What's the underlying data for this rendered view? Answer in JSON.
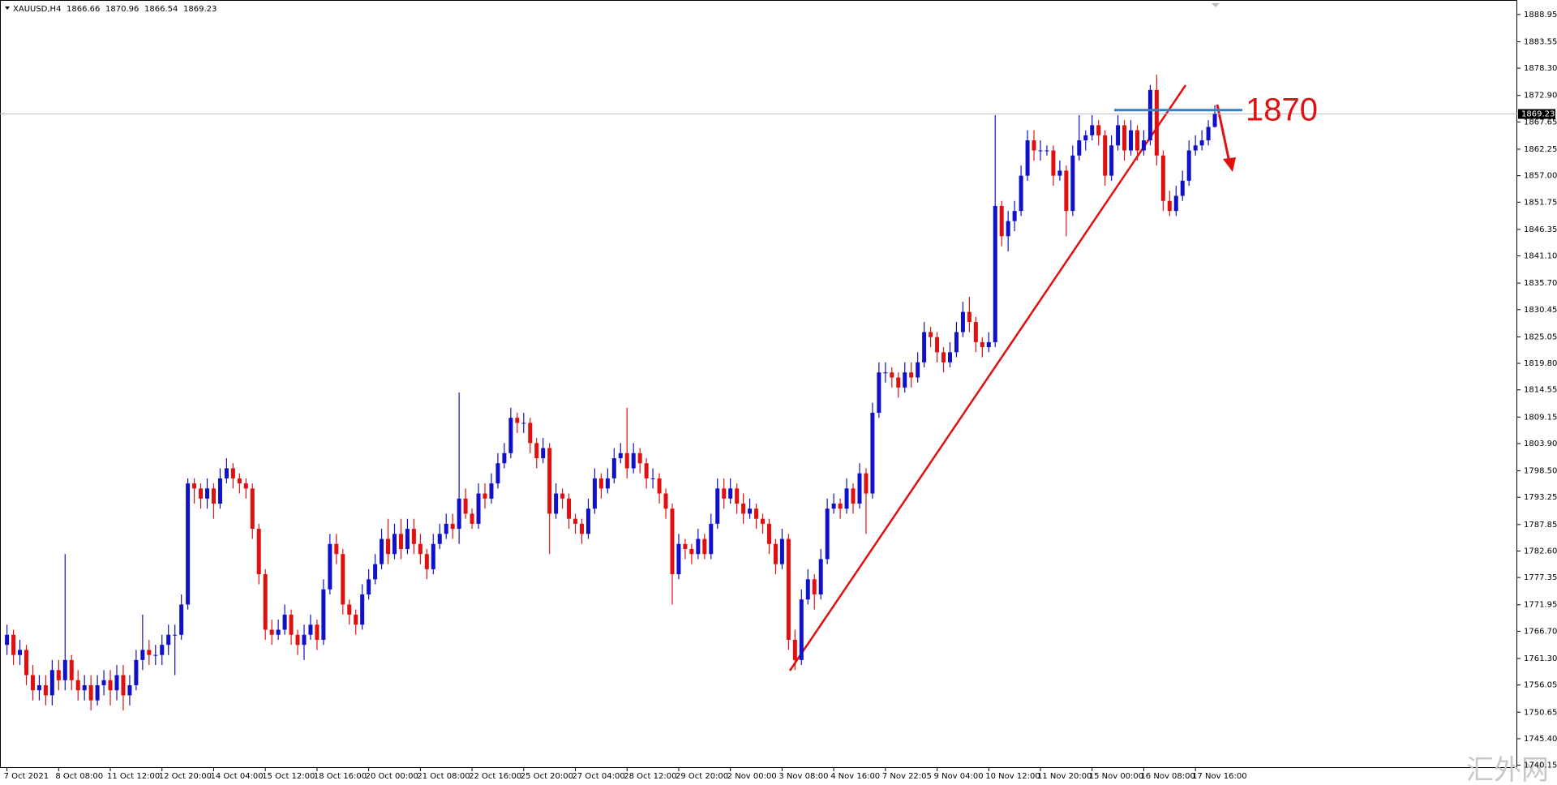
{
  "chart_data": {
    "type": "candlestick",
    "symbol": "XAUUSD,H4",
    "level_annotation": 1870,
    "watermark": "汇外网",
    "up_color": "#1010c8",
    "down_color": "#e01010",
    "level_color": "#3a7fc0",
    "trend_color": "#e01010",
    "grid": false,
    "ylim": [
      1739.6,
      1891.5
    ],
    "yticks": [
      1888.95,
      1883.55,
      {
        "value": 1878.3,
        "label": "1878.30"
      },
      {
        "value": 1872.9,
        "label": "1872.90"
      },
      1867.65,
      1862.25,
      {
        "value": 1857,
        "label": "1857.00"
      },
      1851.75,
      1846.35,
      {
        "value": 1841.1,
        "label": "1841.10"
      },
      {
        "value": 1835.7,
        "label": "1835.70"
      },
      1830.45,
      1825.05,
      {
        "value": 1819.8,
        "label": "1819.80"
      },
      1814.55,
      1809.15,
      {
        "value": 1803.9,
        "label": "1803.90"
      },
      {
        "value": 1798.5,
        "label": "1798.50"
      },
      1793.25,
      1787.85,
      {
        "value": 1782.6,
        "label": "1782.60"
      },
      1777.35,
      1771.95,
      {
        "value": 1766.7,
        "label": "1766.70"
      },
      {
        "value": 1761.3,
        "label": "1761.30"
      },
      1756.05,
      1750.65,
      {
        "value": 1745.4,
        "label": "1745.40"
      },
      1740.15
    ],
    "categories": [
      "7 Oct 2021",
      null,
      null,
      null,
      null,
      null,
      null,
      null,
      "8 Oct 08:00",
      null,
      null,
      null,
      null,
      null,
      null,
      null,
      "11 Oct 12:00",
      null,
      null,
      null,
      null,
      null,
      null,
      null,
      "12 Oct 20:00",
      null,
      null,
      null,
      null,
      null,
      null,
      null,
      "14 Oct 04:00",
      null,
      null,
      null,
      null,
      null,
      null,
      null,
      "15 Oct 12:00",
      null,
      null,
      null,
      null,
      null,
      null,
      null,
      "18 Oct 16:00",
      null,
      null,
      null,
      null,
      null,
      null,
      null,
      "20 Oct 00:00",
      null,
      null,
      null,
      null,
      null,
      null,
      null,
      "21 Oct 08:00",
      null,
      null,
      null,
      null,
      null,
      null,
      null,
      "22 Oct 16:00",
      null,
      null,
      null,
      null,
      null,
      null,
      null,
      "25 Oct 20:00",
      null,
      null,
      null,
      null,
      null,
      null,
      null,
      "27 Oct 04:00",
      null,
      null,
      null,
      null,
      null,
      null,
      null,
      "28 Oct 12:00",
      null,
      null,
      null,
      null,
      null,
      null,
      null,
      "29 Oct 20:00",
      null,
      null,
      null,
      null,
      null,
      null,
      null,
      "2 Nov 00:00",
      null,
      null,
      null,
      null,
      null,
      null,
      null,
      "3 Nov 08:00",
      null,
      null,
      null,
      null,
      null,
      null,
      null,
      "4 Nov 16:00",
      null,
      null,
      null,
      null,
      null,
      null,
      null,
      "7 Nov 22:05",
      null,
      null,
      null,
      null,
      null,
      null,
      null,
      "9 Nov 04:00",
      null,
      null,
      null,
      null,
      null,
      null,
      null,
      "10 Nov 12:00",
      null,
      null,
      null,
      null,
      null,
      null,
      null,
      "11 Nov 20:00",
      null,
      null,
      null,
      null,
      null,
      null,
      null,
      "15 Nov 00:00",
      null,
      null,
      null,
      null,
      null,
      null,
      null,
      "16 Nov 08:00",
      null,
      null,
      null,
      null,
      null,
      null,
      null,
      "17 Nov 16:00",
      null,
      null,
      null
    ],
    "candles": [
      [
        1764,
        1768,
        1762,
        1766
      ],
      [
        1766,
        1767,
        1760,
        1762
      ],
      [
        1762,
        1765,
        1760,
        1763
      ],
      [
        1763,
        1764,
        1756,
        1758
      ],
      [
        1758,
        1760,
        1753,
        1755
      ],
      [
        1755,
        1758,
        1753,
        1756
      ],
      [
        1756,
        1758,
        1752,
        1754
      ],
      [
        1754,
        1761,
        1752,
        1759
      ],
      [
        1759,
        1761,
        1755,
        1757
      ],
      [
        1757,
        1782,
        1755,
        1761
      ],
      [
        1761,
        1762,
        1755,
        1757
      ],
      [
        1757,
        1759,
        1753,
        1755
      ],
      [
        1755,
        1758,
        1753,
        1756
      ],
      [
        1756,
        1758,
        1751,
        1753
      ],
      [
        1753,
        1758,
        1752,
        1756
      ],
      [
        1756,
        1759,
        1754,
        1757
      ],
      [
        1757,
        1759,
        1752,
        1755
      ],
      [
        1755,
        1760,
        1753,
        1758
      ],
      [
        1758,
        1760,
        1751,
        1754
      ],
      [
        1754,
        1758,
        1752,
        1756
      ],
      [
        1756,
        1763,
        1755,
        1761
      ],
      [
        1761,
        1770,
        1759,
        1763
      ],
      [
        1763,
        1765,
        1760,
        1762
      ],
      [
        1762,
        1764,
        1760,
        1762
      ],
      [
        1762,
        1766,
        1760,
        1764
      ],
      [
        1764,
        1768,
        1762,
        1766
      ],
      [
        1766,
        1768,
        1758,
        1766
      ],
      [
        1766,
        1774,
        1765,
        1772
      ],
      [
        1772,
        1797,
        1771,
        1796
      ],
      [
        1796,
        1797,
        1792,
        1795
      ],
      [
        1795,
        1796,
        1791,
        1793
      ],
      [
        1793,
        1797,
        1791,
        1795
      ],
      [
        1795,
        1796,
        1789,
        1792
      ],
      [
        1792,
        1799,
        1791,
        1797
      ],
      [
        1797,
        1801,
        1796,
        1799
      ],
      [
        1799,
        1800,
        1795,
        1797
      ],
      [
        1797,
        1798,
        1794,
        1796
      ],
      [
        1796,
        1797,
        1793,
        1795
      ],
      [
        1795,
        1796,
        1785,
        1787
      ],
      [
        1787,
        1788,
        1776,
        1778
      ],
      [
        1778,
        1779,
        1765,
        1767
      ],
      [
        1767,
        1769,
        1764,
        1766
      ],
      [
        1766,
        1769,
        1765,
        1767
      ],
      [
        1767,
        1772,
        1766,
        1770
      ],
      [
        1770,
        1771,
        1764,
        1766
      ],
      [
        1766,
        1767,
        1762,
        1764
      ],
      [
        1764,
        1768,
        1761,
        1766
      ],
      [
        1766,
        1770,
        1765,
        1768
      ],
      [
        1768,
        1769,
        1763,
        1765
      ],
      [
        1765,
        1777,
        1764,
        1775
      ],
      [
        1775,
        1786,
        1774,
        1784
      ],
      [
        1784,
        1786,
        1780,
        1782
      ],
      [
        1782,
        1783,
        1770,
        1772
      ],
      [
        1772,
        1773,
        1768,
        1770
      ],
      [
        1770,
        1771,
        1766,
        1768
      ],
      [
        1768,
        1776,
        1767,
        1774
      ],
      [
        1774,
        1779,
        1773,
        1777
      ],
      [
        1777,
        1782,
        1776,
        1780
      ],
      [
        1780,
        1787,
        1779,
        1785
      ],
      [
        1785,
        1789,
        1780,
        1782
      ],
      [
        1782,
        1788,
        1781,
        1786
      ],
      [
        1786,
        1789,
        1781,
        1783
      ],
      [
        1783,
        1789,
        1782,
        1787
      ],
      [
        1787,
        1789,
        1782,
        1784
      ],
      [
        1784,
        1786,
        1780,
        1782
      ],
      [
        1782,
        1783,
        1777,
        1779
      ],
      [
        1779,
        1786,
        1778,
        1784
      ],
      [
        1784,
        1788,
        1783,
        1786
      ],
      [
        1786,
        1790,
        1785,
        1788
      ],
      [
        1788,
        1790,
        1785,
        1787
      ],
      [
        1787,
        1814,
        1784,
        1793
      ],
      [
        1793,
        1795,
        1789,
        1790
      ],
      [
        1790,
        1791,
        1787,
        1788
      ],
      [
        1788,
        1796,
        1787,
        1794
      ],
      [
        1794,
        1796,
        1791,
        1793
      ],
      [
        1793,
        1798,
        1792,
        1796
      ],
      [
        1796,
        1802,
        1795,
        1800
      ],
      [
        1800,
        1804,
        1799,
        1802
      ],
      [
        1802,
        1811,
        1801,
        1809
      ],
      [
        1809,
        1810,
        1806,
        1808
      ],
      [
        1808,
        1810,
        1806,
        1808
      ],
      [
        1808,
        1809,
        1802,
        1804
      ],
      [
        1804,
        1805,
        1799,
        1801
      ],
      [
        1801,
        1805,
        1800,
        1803
      ],
      [
        1803,
        1804,
        1782,
        1790
      ],
      [
        1790,
        1796,
        1789,
        1794
      ],
      [
        1794,
        1795,
        1791,
        1793
      ],
      [
        1793,
        1794,
        1787,
        1789
      ],
      [
        1789,
        1790,
        1786,
        1788
      ],
      [
        1788,
        1789,
        1784,
        1786
      ],
      [
        1786,
        1793,
        1785,
        1791
      ],
      [
        1791,
        1799,
        1790,
        1797
      ],
      [
        1797,
        1798,
        1793,
        1795
      ],
      [
        1795,
        1799,
        1794,
        1797
      ],
      [
        1797,
        1803,
        1796,
        1801
      ],
      [
        1801,
        1804,
        1800,
        1802
      ],
      [
        1802,
        1811,
        1797,
        1799
      ],
      [
        1799,
        1804,
        1798,
        1802
      ],
      [
        1802,
        1803,
        1798,
        1800
      ],
      [
        1800,
        1801,
        1795,
        1797
      ],
      [
        1797,
        1799,
        1795,
        1797
      ],
      [
        1797,
        1798,
        1792,
        1794
      ],
      [
        1794,
        1795,
        1789,
        1791
      ],
      [
        1791,
        1792,
        1772,
        1778
      ],
      [
        1778,
        1786,
        1777,
        1784
      ],
      [
        1784,
        1785,
        1781,
        1783
      ],
      [
        1783,
        1784,
        1780,
        1782
      ],
      [
        1782,
        1787,
        1781,
        1785
      ],
      [
        1785,
        1786,
        1781,
        1782
      ],
      [
        1782,
        1790,
        1781,
        1788
      ],
      [
        1788,
        1797,
        1787,
        1795
      ],
      [
        1795,
        1797,
        1791,
        1793
      ],
      [
        1793,
        1797,
        1792,
        1795
      ],
      [
        1795,
        1796,
        1790,
        1792
      ],
      [
        1792,
        1794,
        1788,
        1790
      ],
      [
        1790,
        1793,
        1789,
        1791
      ],
      [
        1791,
        1792,
        1787,
        1789
      ],
      [
        1789,
        1790,
        1786,
        1788
      ],
      [
        1788,
        1789,
        1782,
        1784
      ],
      [
        1784,
        1785,
        1778,
        1780
      ],
      [
        1780,
        1787,
        1779,
        1785
      ],
      [
        1785,
        1786,
        1763,
        1765
      ],
      [
        1765,
        1767,
        1759,
        1761
      ],
      [
        1761,
        1775,
        1760,
        1773
      ],
      [
        1773,
        1779,
        1772,
        1777
      ],
      [
        1777,
        1778,
        1771,
        1774
      ],
      [
        1774,
        1783,
        1773,
        1781
      ],
      [
        1781,
        1793,
        1780,
        1791
      ],
      [
        1791,
        1794,
        1790,
        1792
      ],
      [
        1792,
        1793,
        1789,
        1791
      ],
      [
        1791,
        1797,
        1790,
        1795
      ],
      [
        1795,
        1796,
        1790,
        1792
      ],
      [
        1792,
        1800,
        1791,
        1798
      ],
      [
        1798,
        1799,
        1786,
        1794
      ],
      [
        1794,
        1812,
        1793,
        1810
      ],
      [
        1810,
        1820,
        1809,
        1818
      ],
      [
        1818,
        1820,
        1816,
        1818
      ],
      [
        1818,
        1819,
        1815,
        1817
      ],
      [
        1817,
        1818,
        1813,
        1815
      ],
      [
        1815,
        1820,
        1814,
        1818
      ],
      [
        1818,
        1820,
        1815,
        1817
      ],
      [
        1817,
        1822,
        1816,
        1820
      ],
      [
        1820,
        1828,
        1819,
        1826
      ],
      [
        1826,
        1827,
        1823,
        1825
      ],
      [
        1825,
        1826,
        1820,
        1822
      ],
      [
        1822,
        1823,
        1818,
        1820
      ],
      [
        1820,
        1824,
        1819,
        1822
      ],
      [
        1822,
        1828,
        1821,
        1826
      ],
      [
        1826,
        1832,
        1825,
        1830
      ],
      [
        1830,
        1833,
        1826,
        1828
      ],
      [
        1828,
        1829,
        1822,
        1824
      ],
      [
        1824,
        1825,
        1821,
        1823
      ],
      [
        1823,
        1826,
        1822,
        1824
      ],
      [
        1824,
        1869,
        1823,
        1851
      ],
      [
        1851,
        1852,
        1843,
        1845
      ],
      [
        1845,
        1850,
        1842,
        1848
      ],
      [
        1848,
        1852,
        1846,
        1850
      ],
      [
        1850,
        1859,
        1849,
        1857
      ],
      [
        1857,
        1866,
        1856,
        1864
      ],
      [
        1864,
        1866,
        1860,
        1862
      ],
      [
        1862,
        1864,
        1860,
        1862
      ],
      [
        1862,
        1863,
        1861,
        1862
      ],
      [
        1862,
        1863,
        1855,
        1857
      ],
      [
        1857,
        1860,
        1856,
        1858
      ],
      [
        1858,
        1859,
        1845,
        1850
      ],
      [
        1850,
        1863,
        1849,
        1861
      ],
      [
        1861,
        1869,
        1860,
        1864
      ],
      [
        1864,
        1866,
        1862,
        1865
      ],
      [
        1865,
        1869,
        1864,
        1867
      ],
      [
        1867,
        1868,
        1863,
        1865
      ],
      [
        1865,
        1866,
        1855,
        1857
      ],
      [
        1857,
        1865,
        1856,
        1863
      ],
      [
        1863,
        1869,
        1862,
        1867
      ],
      [
        1867,
        1868,
        1860,
        1862
      ],
      [
        1862,
        1868,
        1861,
        1866
      ],
      [
        1866,
        1867,
        1860,
        1862
      ],
      [
        1862,
        1866,
        1861,
        1864
      ],
      [
        1864,
        1875,
        1863,
        1874
      ],
      [
        1874,
        1877,
        1859,
        1861
      ],
      [
        1861,
        1862,
        1850,
        1852
      ],
      [
        1852,
        1854,
        1849,
        1850
      ],
      [
        1850,
        1855,
        1849,
        1853
      ],
      [
        1853,
        1858,
        1852,
        1856
      ],
      [
        1856,
        1864,
        1855,
        1862
      ],
      [
        1862,
        1865,
        1861,
        1863
      ],
      [
        1863,
        1866,
        1862,
        1864
      ],
      [
        1864,
        1868,
        1863,
        1866.66
      ],
      [
        1866.66,
        1870.96,
        1866.54,
        1869.23
      ]
    ]
  }
}
